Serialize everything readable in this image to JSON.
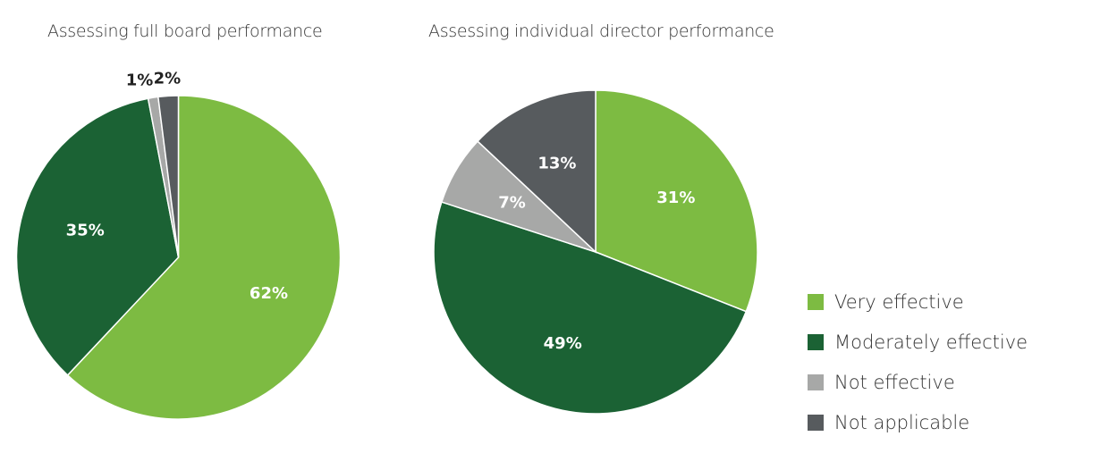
{
  "chart_data": [
    {
      "type": "pie",
      "title": "Assessing full board performance",
      "slices": [
        {
          "label": "Very effective",
          "value": 62,
          "data_label": "62%"
        },
        {
          "label": "Moderately effective",
          "value": 35,
          "data_label": "35%"
        },
        {
          "label": "Not effective",
          "value": 1,
          "data_label": "1%"
        },
        {
          "label": "Not applicable",
          "value": 2,
          "data_label": "2%"
        }
      ]
    },
    {
      "type": "pie",
      "title": "Assessing individual director performance",
      "slices": [
        {
          "label": "Very effective",
          "value": 31,
          "data_label": "31%"
        },
        {
          "label": "Moderately effective",
          "value": 49,
          "data_label": "49%"
        },
        {
          "label": "Not effective",
          "value": 7,
          "data_label": "7%"
        },
        {
          "label": "Not applicable",
          "value": 13,
          "data_label": "13%"
        }
      ]
    }
  ],
  "legend": [
    {
      "label": "Very effective",
      "color": "#7dbb42"
    },
    {
      "label": "Moderately effective",
      "color": "#1b6234"
    },
    {
      "label": "Not effective",
      "color": "#a7a8a7"
    },
    {
      "label": "Not applicable",
      "color": "#575b5e"
    }
  ]
}
